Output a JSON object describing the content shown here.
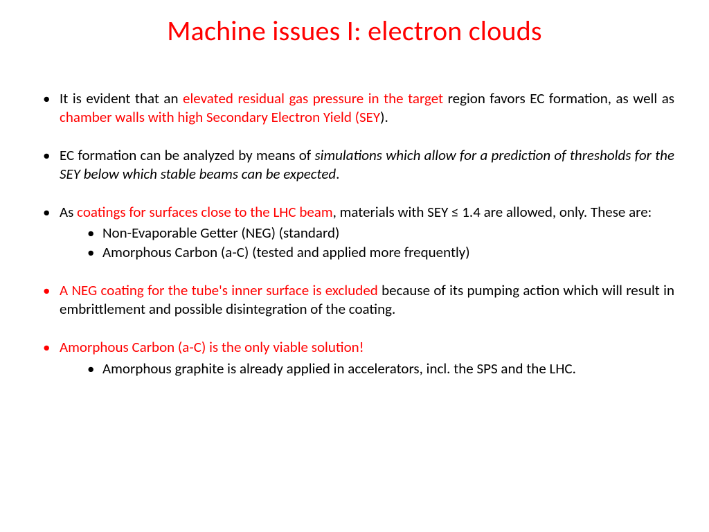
{
  "colors": {
    "accent": "#ff0000",
    "text": "#000000",
    "background": "#ffffff"
  },
  "title": "Machine issues I: electron clouds",
  "bullets": {
    "b1": {
      "t1": "It is evident that an ",
      "t2": "elevated residual gas pressure in the target",
      "t3": " region favors EC formation, as well as ",
      "t4": "chamber walls with high Secondary Electron Yield (SEY",
      "t5": ")."
    },
    "b2": {
      "t1": "EC formation can be analyzed by means of ",
      "t2": "simulations which allow for a prediction of thresholds for the SEY below which stable beams can be expected",
      "t3": "."
    },
    "b3": {
      "t1": "As ",
      "t2": "coatings for surfaces close to the LHC beam",
      "t3": ", materials with SEY ≤ 1.4 are allowed, only. These are:",
      "s1": "Non-Evaporable Getter (NEG) (standard)",
      "s2": "Amorphous Carbon (a-C)  (tested and applied more frequently)"
    },
    "b4": {
      "t1": "A NEG coating for the tube's inner surface is excluded",
      "t2": " because of its pumping action which will result in embrittlement and possible disintegration of the coating."
    },
    "b5": {
      "t1": "Amorphous Carbon (a-C) is the only viable solution",
      "t2": "!",
      "s1": "Amorphous graphite is already applied in accelerators, incl. the SPS and the LHC."
    }
  }
}
